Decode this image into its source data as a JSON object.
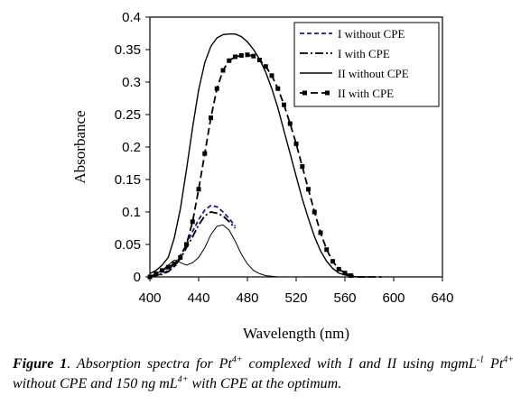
{
  "chart_data": {
    "type": "line",
    "title": "",
    "xlabel": "Wavelength (nm)",
    "ylabel": "Absorbance",
    "xlim": [
      400,
      640
    ],
    "ylim": [
      0,
      0.4
    ],
    "xticks": [
      "400",
      "440",
      "480",
      "520",
      "560",
      "600",
      "640"
    ],
    "yticks": [
      "0",
      "0.05",
      "0.1",
      "0.15",
      "0.2",
      "0.25",
      "0.3",
      "0.35",
      "0.4"
    ],
    "grid": false,
    "legend_position": "top-right",
    "series": [
      {
        "name": "I without CPE",
        "style": "dashed",
        "color": "#1a1a8c",
        "x": [
          400,
          405,
          410,
          415,
          420,
          425,
          430,
          435,
          440,
          445,
          450,
          455,
          460,
          465,
          470
        ],
        "y": [
          0,
          0.002,
          0.005,
          0.01,
          0.02,
          0.033,
          0.05,
          0.07,
          0.088,
          0.103,
          0.11,
          0.108,
          0.1,
          0.09,
          0.078
        ]
      },
      {
        "name": "I with CPE",
        "style": "dash-dot",
        "color": "#000000",
        "x": [
          400,
          405,
          410,
          415,
          420,
          425,
          430,
          435,
          440,
          445,
          450,
          455,
          460,
          465,
          470
        ],
        "y": [
          0,
          0.002,
          0.004,
          0.008,
          0.016,
          0.028,
          0.045,
          0.062,
          0.08,
          0.094,
          0.1,
          0.098,
          0.094,
          0.085,
          0.075
        ]
      },
      {
        "name": "II without CPE",
        "style": "solid",
        "color": "#000000",
        "x": [
          400,
          405,
          410,
          415,
          420,
          425,
          430,
          435,
          440,
          445,
          450,
          455,
          460,
          465,
          470,
          475,
          480,
          485,
          490,
          495,
          500,
          505,
          510,
          515,
          520,
          525,
          530,
          535,
          540,
          545,
          550,
          555,
          560,
          565,
          570,
          575,
          580
        ],
        "y": [
          0.005,
          0.01,
          0.018,
          0.03,
          0.06,
          0.105,
          0.165,
          0.23,
          0.288,
          0.33,
          0.355,
          0.368,
          0.373,
          0.374,
          0.374,
          0.37,
          0.362,
          0.35,
          0.335,
          0.315,
          0.29,
          0.26,
          0.225,
          0.19,
          0.155,
          0.12,
          0.09,
          0.062,
          0.04,
          0.024,
          0.013,
          0.006,
          0.003,
          0.001,
          0,
          0,
          0
        ]
      },
      {
        "name": "II with CPE",
        "style": "dashed-square",
        "color": "#000000",
        "x": [
          400,
          405,
          410,
          415,
          420,
          425,
          430,
          435,
          440,
          445,
          450,
          455,
          460,
          465,
          470,
          475,
          480,
          485,
          490,
          495,
          500,
          505,
          510,
          515,
          520,
          525,
          530,
          535,
          540,
          545,
          550,
          555,
          560,
          565,
          570,
          575,
          580,
          585,
          590
        ],
        "y": [
          0,
          0.005,
          0.01,
          0.015,
          0.02,
          0.03,
          0.05,
          0.085,
          0.135,
          0.19,
          0.245,
          0.29,
          0.318,
          0.333,
          0.339,
          0.341,
          0.342,
          0.34,
          0.334,
          0.324,
          0.31,
          0.29,
          0.265,
          0.236,
          0.205,
          0.17,
          0.135,
          0.1,
          0.068,
          0.042,
          0.024,
          0.012,
          0.006,
          0.002,
          0,
          0,
          0,
          0,
          0
        ]
      },
      {
        "name": "",
        "style": "thin-solid",
        "color": "#000000",
        "x": [
          400,
          405,
          410,
          415,
          420,
          425,
          430,
          435,
          440,
          445,
          450,
          455,
          460,
          465,
          470,
          475,
          480,
          485,
          490,
          495,
          500,
          505,
          510
        ],
        "y": [
          0,
          0.004,
          0.01,
          0.018,
          0.026,
          0.022,
          0.018,
          0.022,
          0.03,
          0.045,
          0.065,
          0.078,
          0.08,
          0.072,
          0.055,
          0.035,
          0.02,
          0.01,
          0.005,
          0.002,
          0.001,
          0,
          0
        ]
      }
    ]
  },
  "caption": {
    "label": "Figure 1",
    "text_1": ". Absorption spectra for Pt",
    "sup_1": "4+",
    "text_2": " complexed with I and II using mgmL",
    "sup_2": "-1",
    "text_3": " Pt",
    "sup_3": "4+",
    "text_4": " without CPE and 150 ng mL",
    "sup_4": "4+",
    "text_5": " with CPE at the optimum."
  }
}
